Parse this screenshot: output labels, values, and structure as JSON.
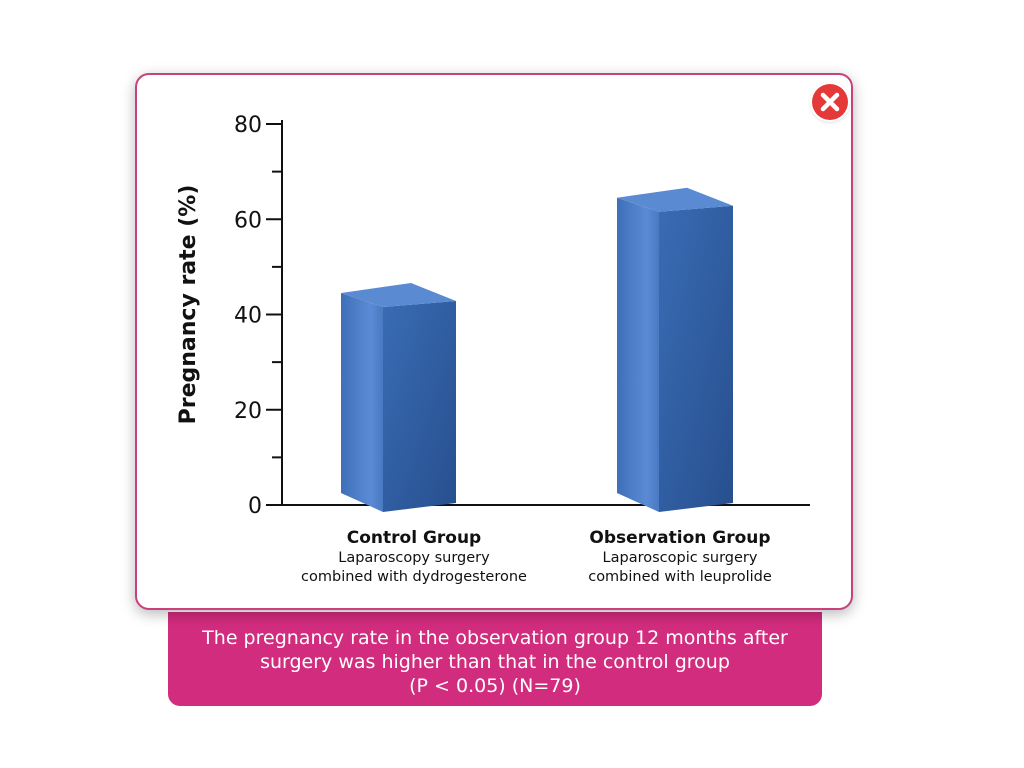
{
  "close_icon": "close-icon",
  "colors": {
    "accent": "#d22c7e",
    "card_border": "#c8417c",
    "close": "#e53939",
    "bar_front": "#3060a8",
    "bar_side": "#4a7cc7",
    "bar_top": "#5a8ad2"
  },
  "chart_data": {
    "type": "bar",
    "categories": [
      {
        "name": "Control Group",
        "subtitle": [
          "Laparoscopy surgery",
          "combined with dydrogesterone"
        ]
      },
      {
        "name": "Observation Group",
        "subtitle": [
          "Laparoscopic surgery",
          "combined with leuprolide"
        ]
      }
    ],
    "values": [
      42,
      62
    ],
    "ylabel": "Pregnancy rate (%)",
    "ylim": [
      0,
      80
    ],
    "yticks": [
      0,
      20,
      40,
      60,
      80
    ],
    "grid": false
  },
  "caption": {
    "line1": "The pregnancy rate in the observation group 12 months after",
    "line2": "surgery was higher than that in the control group",
    "line3": "(P < 0.05) (N=79)"
  }
}
